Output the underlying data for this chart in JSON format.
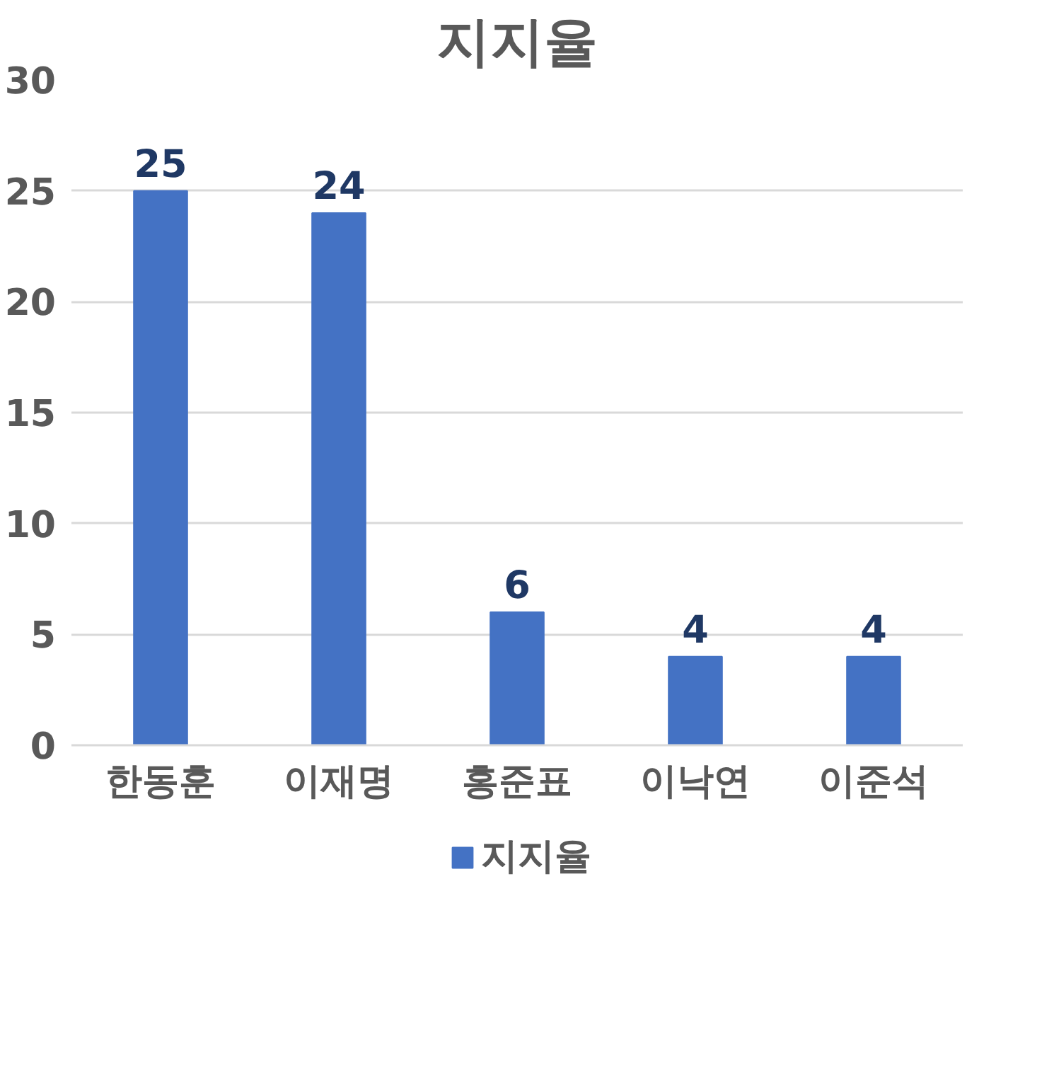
{
  "chart_data": {
    "type": "bar",
    "title": "지지율",
    "categories": [
      "한동훈",
      "이재명",
      "홍준표",
      "이낙연",
      "이준석"
    ],
    "series": [
      {
        "name": "지지율",
        "color": "#4472c4",
        "values": [
          25,
          24,
          6,
          4,
          4
        ]
      }
    ],
    "ylim": [
      0,
      30
    ],
    "yticks": [
      0,
      5,
      10,
      15,
      20,
      25,
      30
    ],
    "grid": "y",
    "legend": "bottom",
    "data_labels": true
  }
}
